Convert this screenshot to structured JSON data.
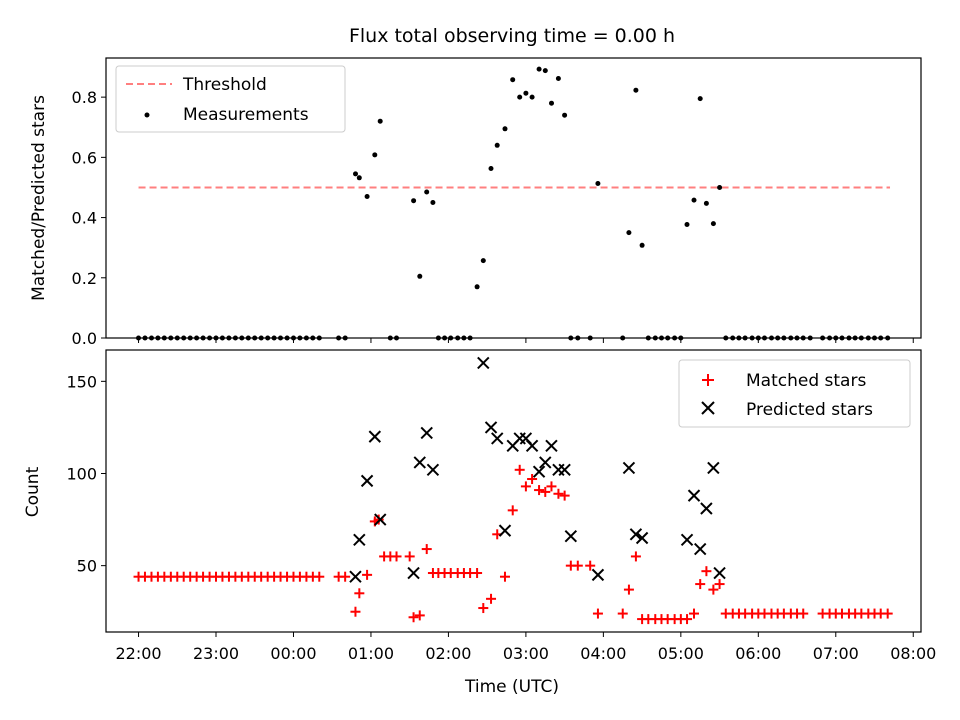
{
  "figure": {
    "title": "Flux total observing time = 0.00 h",
    "xlabel": "Time (UTC)"
  },
  "chart_data": [
    {
      "type": "scatter",
      "title": "Flux total observing time = 0.00 h",
      "ylabel": "Matched/Predicted stars",
      "ylim": [
        0,
        0.93
      ],
      "yticks": [
        "0.0",
        "0.2",
        "0.4",
        "0.6",
        "0.8"
      ],
      "ytick_values": [
        0,
        0.2,
        0.4,
        0.6,
        0.8
      ],
      "xlim_hours": [
        21.58,
        32.1
      ],
      "grid": false,
      "legend_position": "upper-left",
      "series": [
        {
          "name": "Threshold",
          "kind": "dashed-line",
          "color": "#ff7f7f",
          "x": [
            22.0,
            31.7
          ],
          "y": [
            0.5,
            0.5
          ]
        },
        {
          "name": "Measurements",
          "kind": "dots",
          "color": "#000000",
          "x": [
            22.0,
            22.083,
            22.167,
            22.25,
            22.333,
            22.417,
            22.5,
            22.583,
            22.667,
            22.75,
            22.833,
            22.917,
            23.0,
            23.083,
            23.167,
            23.25,
            23.333,
            23.417,
            23.5,
            23.583,
            23.667,
            23.75,
            23.833,
            23.917,
            24.0,
            24.083,
            24.167,
            24.25,
            24.333,
            24.583,
            24.667,
            24.8,
            24.85,
            24.95,
            25.05,
            25.12,
            25.25,
            25.33,
            25.55,
            25.63,
            25.72,
            25.8,
            25.87,
            25.95,
            26.03,
            26.12,
            26.2,
            26.28,
            26.37,
            26.45,
            26.55,
            26.63,
            26.73,
            26.83,
            26.92,
            27.0,
            27.08,
            27.17,
            27.25,
            27.33,
            27.42,
            27.5,
            27.58,
            27.67,
            27.83,
            27.93,
            28.25,
            28.33,
            28.42,
            28.5,
            28.58,
            28.67,
            28.75,
            28.83,
            28.92,
            29.0,
            29.08,
            29.17,
            29.25,
            29.33,
            29.42,
            29.5,
            29.58,
            29.67,
            29.75,
            29.83,
            29.92,
            30.0,
            30.08,
            30.17,
            30.25,
            30.33,
            30.42,
            30.5,
            30.58,
            30.67,
            30.83,
            30.92,
            31.0,
            31.08,
            31.17,
            31.25,
            31.33,
            31.42,
            31.5,
            31.58,
            31.67
          ],
          "y": [
            0,
            0,
            0,
            0,
            0,
            0,
            0,
            0,
            0,
            0,
            0,
            0,
            0,
            0,
            0,
            0,
            0,
            0,
            0,
            0,
            0,
            0,
            0,
            0,
            0,
            0,
            0,
            0,
            0,
            0,
            0,
            0.545,
            0.532,
            0.47,
            0.608,
            0.72,
            0,
            0,
            0.456,
            0.205,
            0.485,
            0.45,
            0,
            0,
            0,
            0,
            0,
            0,
            0.17,
            0.257,
            0.563,
            0.64,
            0.695,
            0.858,
            0.8,
            0.813,
            0.8,
            0.893,
            0.888,
            0.78,
            0.862,
            0.74,
            0,
            0,
            0,
            0.513,
            0,
            0.35,
            0.823,
            0.308,
            0,
            0,
            0,
            0,
            0,
            0,
            0.377,
            0.458,
            0.795,
            0.447,
            0.38,
            0.5,
            0,
            0,
            0,
            0,
            0,
            0,
            0,
            0,
            0,
            0,
            0,
            0,
            0,
            0,
            0,
            0,
            0,
            0,
            0,
            0,
            0,
            0,
            0,
            0,
            0
          ]
        }
      ]
    },
    {
      "type": "scatter",
      "xlabel": "Time (UTC)",
      "ylabel": "Count",
      "ylim": [
        14,
        167
      ],
      "yticks": [
        "50",
        "100",
        "150"
      ],
      "ytick_values": [
        50,
        100,
        150
      ],
      "xlim_hours": [
        21.58,
        32.1
      ],
      "xticks": [
        "22:00",
        "23:00",
        "00:00",
        "01:00",
        "02:00",
        "03:00",
        "04:00",
        "05:00",
        "06:00",
        "07:00",
        "08:00"
      ],
      "xtick_values": [
        22,
        23,
        24,
        25,
        26,
        27,
        28,
        29,
        30,
        31,
        32
      ],
      "grid": false,
      "legend_position": "upper-right",
      "series": [
        {
          "name": "Matched stars",
          "marker": "plus",
          "color": "#ff0000",
          "x": [
            22.0,
            22.083,
            22.167,
            22.25,
            22.333,
            22.417,
            22.5,
            22.583,
            22.667,
            22.75,
            22.833,
            22.917,
            23.0,
            23.083,
            23.167,
            23.25,
            23.333,
            23.417,
            23.5,
            23.583,
            23.667,
            23.75,
            23.833,
            23.917,
            24.0,
            24.083,
            24.167,
            24.25,
            24.333,
            24.583,
            24.667,
            24.8,
            24.85,
            24.95,
            25.05,
            25.1,
            25.17,
            25.25,
            25.33,
            25.5,
            25.55,
            25.63,
            25.72,
            25.8,
            25.87,
            25.95,
            26.03,
            26.12,
            26.2,
            26.28,
            26.37,
            26.45,
            26.55,
            26.63,
            26.73,
            26.83,
            26.92,
            27.0,
            27.08,
            27.17,
            27.25,
            27.33,
            27.42,
            27.5,
            27.58,
            27.67,
            27.83,
            27.93,
            28.25,
            28.33,
            28.42,
            28.5,
            28.58,
            28.67,
            28.75,
            28.83,
            28.92,
            29.0,
            29.08,
            29.17,
            29.25,
            29.33,
            29.42,
            29.5,
            29.58,
            29.67,
            29.75,
            29.83,
            29.92,
            30.0,
            30.08,
            30.17,
            30.25,
            30.33,
            30.42,
            30.5,
            30.58,
            30.83,
            30.92,
            31.0,
            31.08,
            31.17,
            31.25,
            31.33,
            31.42,
            31.5,
            31.58,
            31.67
          ],
          "y": [
            44,
            44,
            44,
            44,
            44,
            44,
            44,
            44,
            44,
            44,
            44,
            44,
            44,
            44,
            44,
            44,
            44,
            44,
            44,
            44,
            44,
            44,
            44,
            44,
            44,
            44,
            44,
            44,
            44,
            44,
            44,
            25,
            35,
            45,
            74,
            75,
            55,
            55,
            55,
            55,
            22,
            23,
            59,
            46,
            46,
            46,
            46,
            46,
            46,
            46,
            46,
            27,
            32,
            67,
            44,
            80,
            102,
            93,
            97,
            91,
            90,
            93,
            89,
            88,
            50,
            50,
            50,
            24,
            24,
            37,
            55,
            21,
            21,
            21,
            21,
            21,
            21,
            21,
            21,
            24,
            40,
            47,
            37,
            40,
            24,
            24,
            24,
            24,
            24,
            24,
            24,
            24,
            24,
            24,
            24,
            24,
            24,
            24,
            24,
            24,
            24,
            24,
            24,
            24,
            24,
            24,
            24,
            24
          ]
        },
        {
          "name": "Predicted stars",
          "marker": "x",
          "color": "#000000",
          "x": [
            24.8,
            24.85,
            24.95,
            25.05,
            25.12,
            25.55,
            25.63,
            25.72,
            25.8,
            26.45,
            26.55,
            26.63,
            26.73,
            26.83,
            26.92,
            27.0,
            27.08,
            27.17,
            27.25,
            27.33,
            27.42,
            27.5,
            27.58,
            27.93,
            28.33,
            28.42,
            28.5,
            29.08,
            29.17,
            29.25,
            29.33,
            29.42,
            29.5
          ],
          "y": [
            44,
            64,
            96,
            120,
            75,
            46,
            106,
            122,
            102,
            160,
            125,
            119,
            69,
            115,
            119,
            119,
            115,
            101,
            106,
            115,
            102,
            102,
            66,
            45,
            103,
            67,
            65,
            64,
            88,
            59,
            81,
            103,
            46
          ]
        }
      ]
    }
  ]
}
